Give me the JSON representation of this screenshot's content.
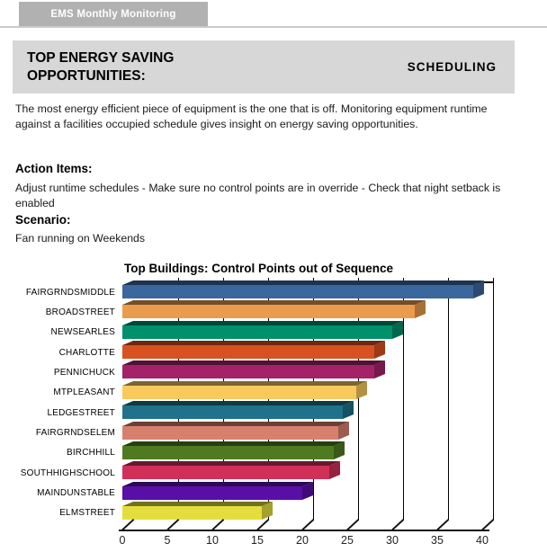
{
  "tab": {
    "label": "EMS Monthly Monitoring"
  },
  "header": {
    "title": "TOP ENERGY SAVING OPPORTUNITIES:",
    "category": "SCHEDULING",
    "band_color": "#d7d7d7",
    "tab_color": "#b1b1b1"
  },
  "intro": "The most energy efficient piece of equipment is the one that is off. Monitoring equipment runtime against a facilities occupied schedule gives insight on energy saving opportunities.",
  "action_items": {
    "heading": "Action Items:",
    "text": "Adjust runtime schedules - Make sure no control points are in override - Check that night setback is enabled"
  },
  "scenario": {
    "heading": "Scenario:",
    "text": "Fan running on Weekends"
  },
  "chart_data": {
    "type": "bar",
    "orientation": "horizontal",
    "style": "3d",
    "title": "Top Buildings: Control Points out of Sequence",
    "categories": [
      "FAIRGRNDSMIDDLE",
      "BROADSTREET",
      "NEWSEARLES",
      "CHARLOTTE",
      "PENNICHUCK",
      "MTPLEASANT",
      "LEDGESTREET",
      "FAIRGRNDSELEM",
      "BIRCHHILL",
      "SOUTHHIGHSCHOOL",
      "MAINDUNSTABLE",
      "ELMSTREET"
    ],
    "values": [
      39,
      32.5,
      30,
      28,
      28,
      26,
      24.5,
      24,
      23.5,
      23,
      20,
      15.5
    ],
    "bar_colors": [
      "#3a679e",
      "#e99c4e",
      "#00916b",
      "#d75220",
      "#a42368",
      "#f9c95e",
      "#20718a",
      "#d8806e",
      "#4e7b20",
      "#d02f57",
      "#590fa7",
      "#e4de3d"
    ],
    "xlabel": "",
    "ylabel": "",
    "xlim": [
      0,
      40
    ],
    "x_ticks": [
      0,
      5,
      10,
      15,
      20,
      25,
      30,
      35,
      40
    ],
    "grid": true,
    "legend": false
  }
}
